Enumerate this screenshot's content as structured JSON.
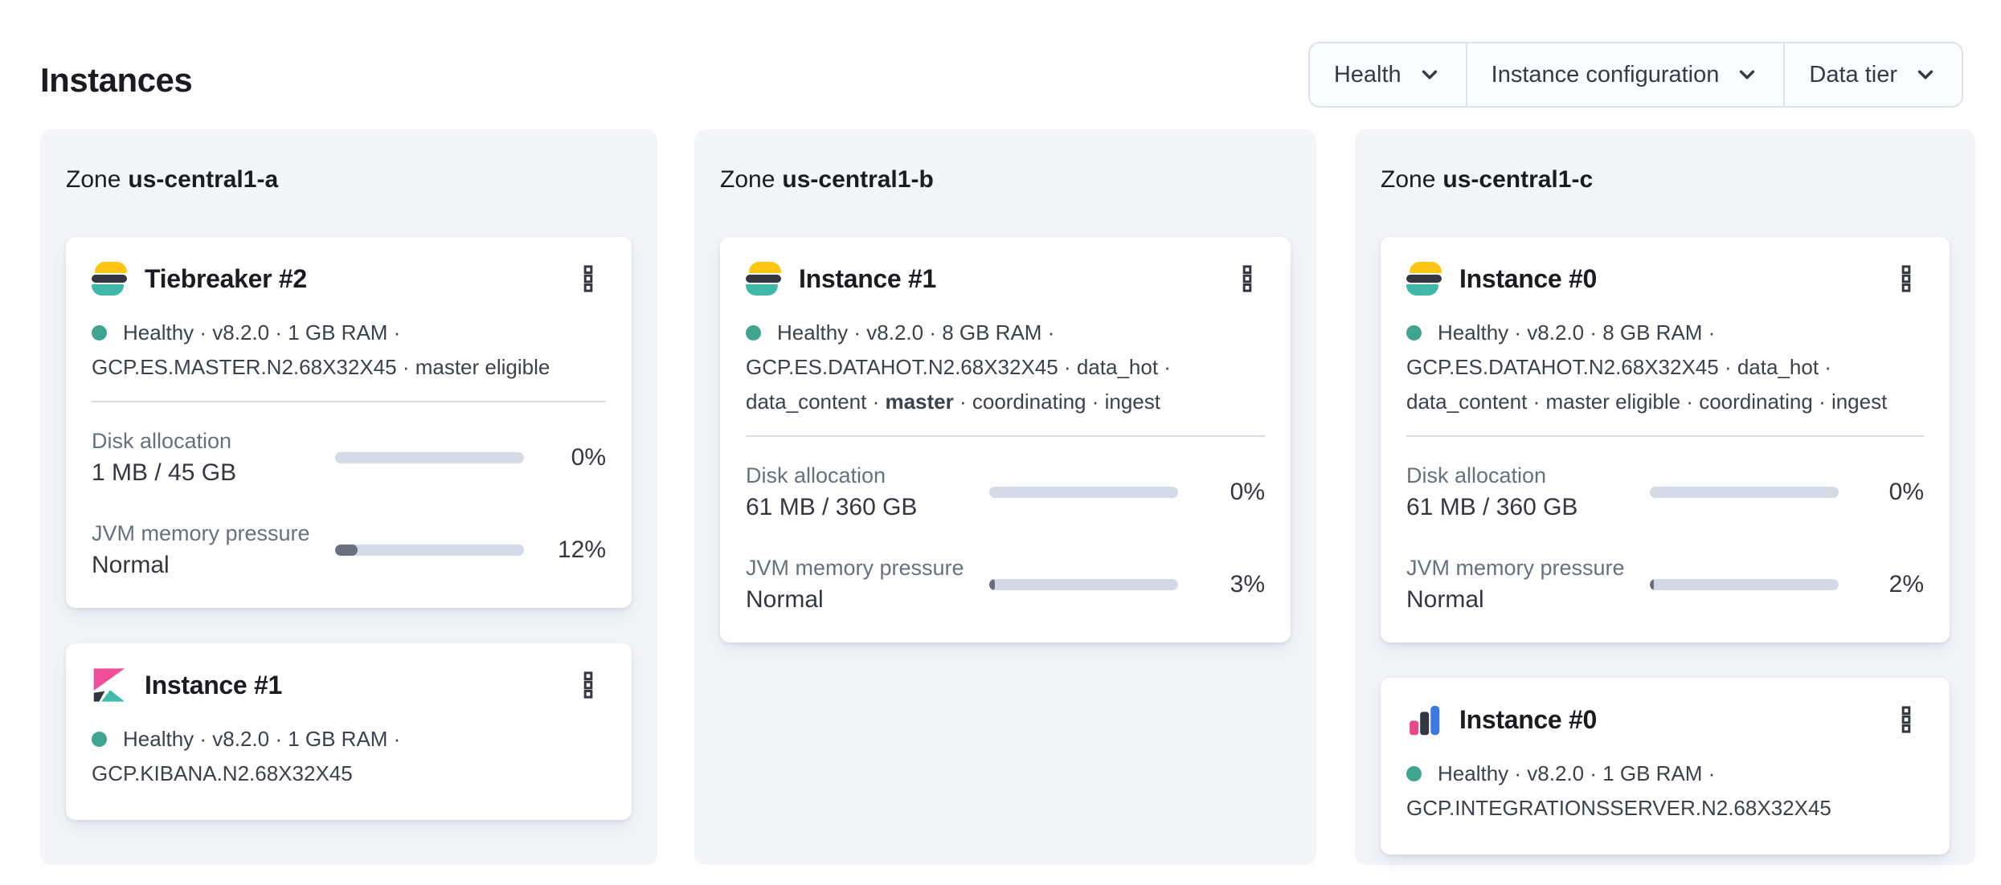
{
  "header": {
    "title": "Instances"
  },
  "filters": [
    {
      "label": "Health"
    },
    {
      "label": "Instance configuration"
    },
    {
      "label": "Data tier"
    }
  ],
  "zones": [
    {
      "prefix": "Zone",
      "name": "us-central1-a",
      "cards": [
        {
          "icon": "elasticsearch-logo",
          "title": "Tiebreaker #2",
          "status_pre": "Healthy · v8.2.0 · 1 GB RAM · GCP.ES.MASTER.N2.68X32X45 · master eligible",
          "status_bold": "",
          "status_post": "",
          "metrics": {
            "disk": {
              "label": "Disk allocation",
              "value": "1 MB / 45 GB",
              "percent": 0,
              "percent_label": "0%"
            },
            "jvm": {
              "label": "JVM memory pressure",
              "value": "Normal",
              "percent": 12,
              "percent_label": "12%"
            }
          }
        },
        {
          "icon": "kibana-logo",
          "title": "Instance #1",
          "status_pre": "Healthy · v8.2.0 · 1 GB RAM · GCP.KIBANA.N2.68X32X45",
          "status_bold": "",
          "status_post": ""
        }
      ]
    },
    {
      "prefix": "Zone",
      "name": "us-central1-b",
      "cards": [
        {
          "icon": "elasticsearch-logo",
          "title": "Instance #1",
          "status_pre": "Healthy · v8.2.0 · 8 GB RAM · GCP.ES.DATAHOT.N2.68X32X45 · data_hot · data_content · ",
          "status_bold": "master",
          "status_post": " · coordinating · ingest",
          "metrics": {
            "disk": {
              "label": "Disk allocation",
              "value": "61 MB / 360 GB",
              "percent": 0,
              "percent_label": "0%"
            },
            "jvm": {
              "label": "JVM memory pressure",
              "value": "Normal",
              "percent": 3,
              "percent_label": "3%"
            }
          }
        }
      ]
    },
    {
      "prefix": "Zone",
      "name": "us-central1-c",
      "cards": [
        {
          "icon": "elasticsearch-logo",
          "title": "Instance #0",
          "status_pre": "Healthy · v8.2.0 · 8 GB RAM · GCP.ES.DATAHOT.N2.68X32X45 · data_hot · data_content · master eligible · coordinating · ingest",
          "status_bold": "",
          "status_post": "",
          "metrics": {
            "disk": {
              "label": "Disk allocation",
              "value": "61 MB / 360 GB",
              "percent": 0,
              "percent_label": "0%"
            },
            "jvm": {
              "label": "JVM memory pressure",
              "value": "Normal",
              "percent": 2,
              "percent_label": "2%"
            }
          }
        },
        {
          "icon": "integrations-server-logo",
          "title": "Instance #0",
          "status_pre": "Healthy · v8.2.0 · 1 GB RAM · GCP.INTEGRATIONSSERVER.N2.68X32X45",
          "status_bold": "",
          "status_post": ""
        }
      ]
    }
  ],
  "icons": {
    "card_menu": "boxes-vertical-icon",
    "filter_dropdown": "chevron-down-icon",
    "health_indicator": "health-dot"
  },
  "colors": {
    "health_dot": "#3fa591",
    "es_logo_yellow": "#fec514",
    "es_logo_dark": "#343741",
    "es_logo_teal": "#40b8a8",
    "kibana_pink": "#f04e98",
    "kibana_dark": "#343741",
    "kibana_teal": "#3fbcab",
    "integrations_pink": "#e8488b",
    "integrations_dark": "#343741",
    "integrations_blue": "#3d78e0",
    "progress_track": "#d5dbe6",
    "progress_fill": "#68707e",
    "panel_background": "#f3f5f9"
  }
}
